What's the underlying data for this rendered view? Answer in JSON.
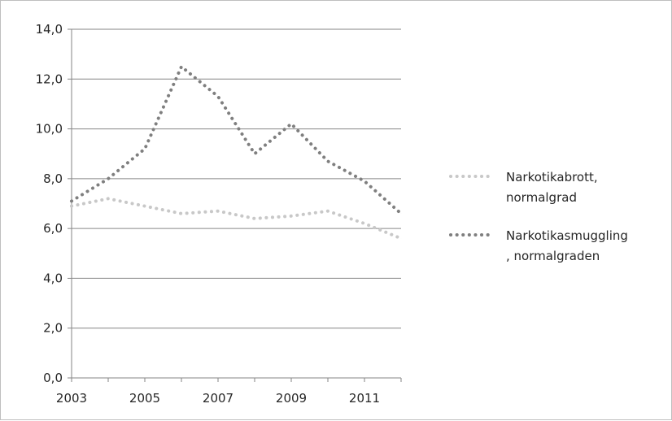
{
  "chart_data": {
    "type": "line",
    "title": "",
    "xlabel": "",
    "ylabel": "",
    "x": [
      2003,
      2004,
      2005,
      2006,
      2007,
      2008,
      2009,
      2010,
      2011,
      2012
    ],
    "xticks": [
      "2003",
      "2005",
      "2007",
      "2009",
      "2011"
    ],
    "yticks": [
      "0,0",
      "2,0",
      "4,0",
      "6,0",
      "8,0",
      "10,0",
      "12,0",
      "14,0"
    ],
    "ylim": [
      0,
      14
    ],
    "grid": true,
    "legend_position": "right",
    "series": [
      {
        "name": "Narkotikabrott, normalgrad",
        "legend_lines": [
          "Narkotikabrott,",
          "normalgrad"
        ],
        "color": "#c8c8c8",
        "values": [
          6.9,
          7.2,
          6.9,
          6.6,
          6.7,
          6.4,
          6.5,
          6.7,
          6.2,
          5.6
        ]
      },
      {
        "name": "Narkotikasmuggling, normalgraden",
        "legend_lines": [
          "Narkotikasmuggling",
          ", normalgraden"
        ],
        "color": "#7f7f7f",
        "values": [
          7.1,
          8.0,
          9.2,
          12.5,
          11.3,
          9.0,
          10.2,
          8.7,
          7.9,
          6.6
        ]
      }
    ]
  }
}
